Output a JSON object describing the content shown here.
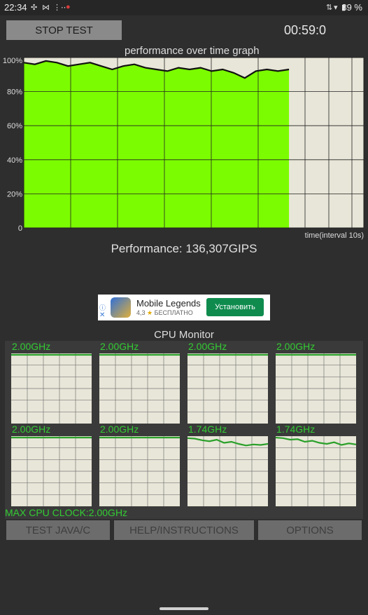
{
  "status_bar": {
    "time": "22:34",
    "battery": "89 %",
    "icons": [
      "fan-icon",
      "bluetooth-icon",
      "tuner-icon",
      "notification-icon",
      "sync-icon",
      "wifi-icon",
      "battery-icon"
    ]
  },
  "controls": {
    "stop_test_label": "STOP TEST",
    "timer": "00:59:0"
  },
  "graph": {
    "title": "performance over time graph",
    "y_tick_labels": [
      "100%",
      "80%",
      "60%",
      "40%",
      "20%",
      "0"
    ],
    "x_label": "time(interval 10s)"
  },
  "performance_text": "Performance: 136,307GIPS",
  "ad": {
    "app_name": "Mobile Legends",
    "rating": "4,3",
    "price": "БЕСПЛАТНО",
    "install_label": "Установить"
  },
  "cpu_monitor": {
    "title": "CPU Monitor",
    "cores": [
      {
        "freq": "2.00GHz",
        "history": [
          1,
          1,
          1,
          1,
          1,
          1,
          1,
          1,
          1,
          1,
          1,
          1
        ]
      },
      {
        "freq": "2.00GHz",
        "history": [
          1,
          1,
          1,
          1,
          1,
          1,
          1,
          1,
          1,
          1,
          1,
          1
        ]
      },
      {
        "freq": "2.00GHz",
        "history": [
          1,
          1,
          1,
          1,
          1,
          1,
          1,
          1,
          1,
          1,
          1,
          1
        ]
      },
      {
        "freq": "2.00GHz",
        "history": [
          1,
          1,
          1,
          1,
          1,
          1,
          1,
          1,
          1,
          1,
          1,
          1
        ]
      },
      {
        "freq": "2.00GHz",
        "history": [
          1,
          1,
          1,
          1,
          1,
          1,
          1,
          1,
          1,
          1,
          1,
          1
        ]
      },
      {
        "freq": "2.00GHz",
        "history": [
          1,
          1,
          1,
          1,
          1,
          1,
          1,
          1,
          1,
          1,
          1,
          1
        ]
      },
      {
        "freq": "1.74GHz",
        "history": [
          0.99,
          0.98,
          0.95,
          0.93,
          0.96,
          0.9,
          0.92,
          0.88,
          0.85,
          0.87,
          0.86,
          0.88
        ]
      },
      {
        "freq": "1.74GHz",
        "history": [
          1.0,
          0.99,
          0.96,
          0.97,
          0.92,
          0.94,
          0.9,
          0.88,
          0.91,
          0.86,
          0.89,
          0.87
        ]
      }
    ],
    "max_clock": "MAX CPU CLOCK:2.00GHz"
  },
  "bottom_buttons": {
    "test_java": "TEST JAVA/C",
    "help": "HELP/INSTRUCTIONS",
    "options": "OPTIONS"
  },
  "chart_data": {
    "type": "area",
    "title": "performance over time graph",
    "xlabel": "time(interval 10s)",
    "ylabel": "",
    "ylim": [
      0,
      100
    ],
    "x_intervals_total": 10,
    "series": [
      {
        "values": [
          97,
          96,
          98,
          97,
          95,
          96,
          97,
          95,
          93,
          95,
          96,
          94,
          93,
          92,
          94,
          93,
          94,
          92,
          93,
          91,
          88,
          92,
          93,
          92,
          93
        ]
      }
    ]
  },
  "colors": {
    "fill": "#7cfc00",
    "plot_bg": "#e8e6d8",
    "line": "#111111",
    "cpu_line": "#2aa02a",
    "cpu_text": "#33cc33"
  }
}
